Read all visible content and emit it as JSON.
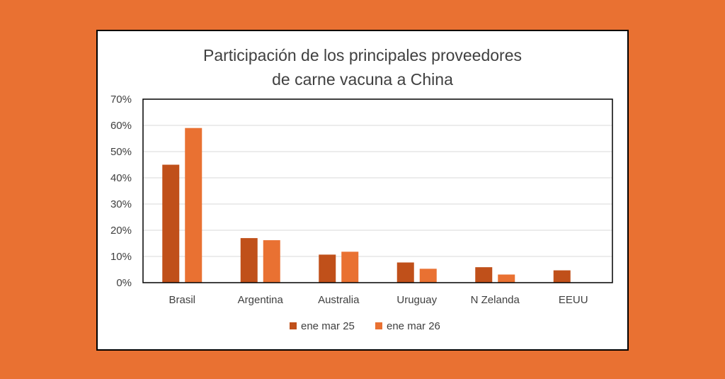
{
  "background_color": "#E97132",
  "chart_data": {
    "type": "bar",
    "title": [
      "Participación  de los  principales  proveedores",
      "de carne vacuna a China"
    ],
    "xlabel": "",
    "ylabel": "",
    "categories": [
      "Brasil",
      "Argentina",
      "Australia",
      "Uruguay",
      "N Zelanda",
      "EEUU"
    ],
    "series": [
      {
        "name": "ene mar 25",
        "color": "#C0501A",
        "values": [
          45,
          17,
          10.7,
          7.7,
          5.9,
          4.7
        ]
      },
      {
        "name": "ene mar 26",
        "color": "#E97132",
        "values": [
          59,
          16.2,
          11.8,
          5.3,
          3.1,
          0
        ]
      }
    ],
    "ylim": [
      0,
      70
    ],
    "yticks": [
      "0%",
      "10%",
      "20%",
      "30%",
      "40%",
      "50%",
      "60%",
      "70%"
    ],
    "grid": true,
    "legend_position": "bottom"
  }
}
